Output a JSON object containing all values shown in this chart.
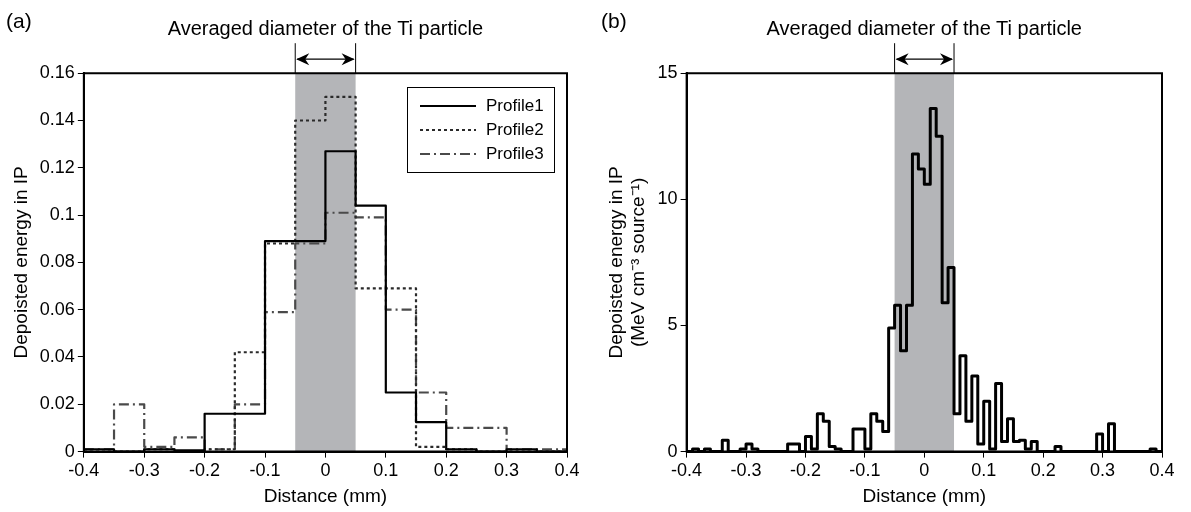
{
  "chart_data": [
    {
      "type": "histogram",
      "title": "(a)",
      "xlabel": "Distance (mm)",
      "ylabel": "Depoisted energy in IP",
      "xlim": [
        -0.4,
        0.4
      ],
      "xticks": [
        -0.4,
        -0.3,
        -0.2,
        -0.1,
        0,
        0.1,
        0.2,
        0.3,
        0.4
      ],
      "ylim": [
        0,
        0.16
      ],
      "yticks": [
        0,
        0.02,
        0.04,
        0.06,
        0.08,
        0.1,
        0.12,
        0.14,
        0.16
      ],
      "grid": false,
      "legend": "top right",
      "bins": [
        -0.4,
        -0.35,
        -0.3,
        -0.25,
        -0.2,
        -0.15,
        -0.1,
        -0.05,
        0,
        0.05,
        0.1,
        0.15,
        0.2,
        0.25,
        0.3,
        0.35,
        0.4
      ],
      "series": [
        {
          "name": "Profile1",
          "color": "#000000",
          "line_style": "solid",
          "values": [
            0.001,
            0,
            0.001,
            0.0005,
            0.016,
            0.016,
            0.089,
            0.089,
            0.127,
            0.104,
            0.025,
            0.0125,
            0.001,
            0,
            0.001,
            0
          ]
        },
        {
          "name": "Profile2",
          "color": "#2a2a2a",
          "line_style": "dotted",
          "values": [
            0,
            0,
            0.001,
            0,
            0.001,
            0.042,
            0.088,
            0.14,
            0.15,
            0.069,
            0.069,
            0.002,
            0.001,
            0,
            0,
            0
          ]
        },
        {
          "name": "Profile3",
          "color": "#4a4a4a",
          "line_style": "dashed",
          "values": [
            0.001,
            0.02,
            0.002,
            0.006,
            0.001,
            0.02,
            0.059,
            0.088,
            0.101,
            0.099,
            0.06,
            0.025,
            0.01,
            0.01,
            0.001,
            0.001
          ]
        }
      ],
      "bands": [
        {
          "axis": "x",
          "from": -0.05,
          "to": 0.05,
          "label": "Averaged diameter of the Ti particle",
          "color": "#b4b5b8"
        }
      ]
    },
    {
      "type": "histogram",
      "title": "(b)",
      "xlabel": "Distance (mm)",
      "ylabel": "Depoisted energy in IP\n(MeV cm⁻³ source⁻¹)",
      "xlim": [
        -0.4,
        0.4
      ],
      "xticks": [
        -0.4,
        -0.3,
        -0.2,
        -0.1,
        0,
        0.1,
        0.2,
        0.3,
        0.4
      ],
      "ylim": [
        0,
        15
      ],
      "yticks": [
        0,
        5,
        10,
        15
      ],
      "grid": false,
      "bins": [
        -0.4,
        -0.39,
        -0.38,
        -0.37,
        -0.36,
        -0.35,
        -0.34,
        -0.33,
        -0.32,
        -0.31,
        -0.3,
        -0.29,
        -0.28,
        -0.27,
        -0.26,
        -0.25,
        -0.24,
        -0.23,
        -0.22,
        -0.21,
        -0.2,
        -0.19,
        -0.18,
        -0.17,
        -0.16,
        -0.15,
        -0.14,
        -0.13,
        -0.12,
        -0.11,
        -0.1,
        -0.09,
        -0.08,
        -0.07,
        -0.06,
        -0.05,
        -0.04,
        -0.03,
        -0.02,
        -0.01,
        0,
        0.01,
        0.02,
        0.03,
        0.04,
        0.05,
        0.06,
        0.07,
        0.08,
        0.09,
        0.1,
        0.11,
        0.12,
        0.13,
        0.14,
        0.15,
        0.16,
        0.17,
        0.18,
        0.19,
        0.2,
        0.21,
        0.22,
        0.23,
        0.24,
        0.25,
        0.26,
        0.27,
        0.28,
        0.29,
        0.3,
        0.31,
        0.32,
        0.33,
        0.34,
        0.35,
        0.36,
        0.37,
        0.38,
        0.39,
        0.4
      ],
      "values": [
        0,
        0.1,
        0,
        0.1,
        0,
        0,
        0.45,
        0,
        0,
        0.1,
        0.3,
        0.1,
        0,
        0,
        0,
        0,
        0,
        0.3,
        0.3,
        0,
        0.6,
        0.1,
        1.5,
        1.2,
        0.2,
        0.1,
        0,
        0,
        0.9,
        0.9,
        0.1,
        1.5,
        1.2,
        0.8,
        4.9,
        5.8,
        4,
        5.8,
        11.8,
        11.2,
        10.6,
        13.6,
        12.5,
        5.9,
        7.3,
        1.5,
        3.8,
        1.2,
        3,
        0.3,
        2,
        0.1,
        2.7,
        0.4,
        1.3,
        0.4,
        0.45,
        0.1,
        0.4,
        0,
        0,
        0,
        0.2,
        0,
        0,
        0,
        0,
        0,
        0,
        0.7,
        0,
        1.1,
        0,
        0,
        0,
        0,
        0,
        0,
        0.1,
        0
      ],
      "color": "#000000",
      "bands": [
        {
          "axis": "x",
          "from": -0.05,
          "to": 0.05,
          "label": "Averaged diameter of the Ti particle",
          "color": "#b4b5b8"
        }
      ]
    }
  ]
}
